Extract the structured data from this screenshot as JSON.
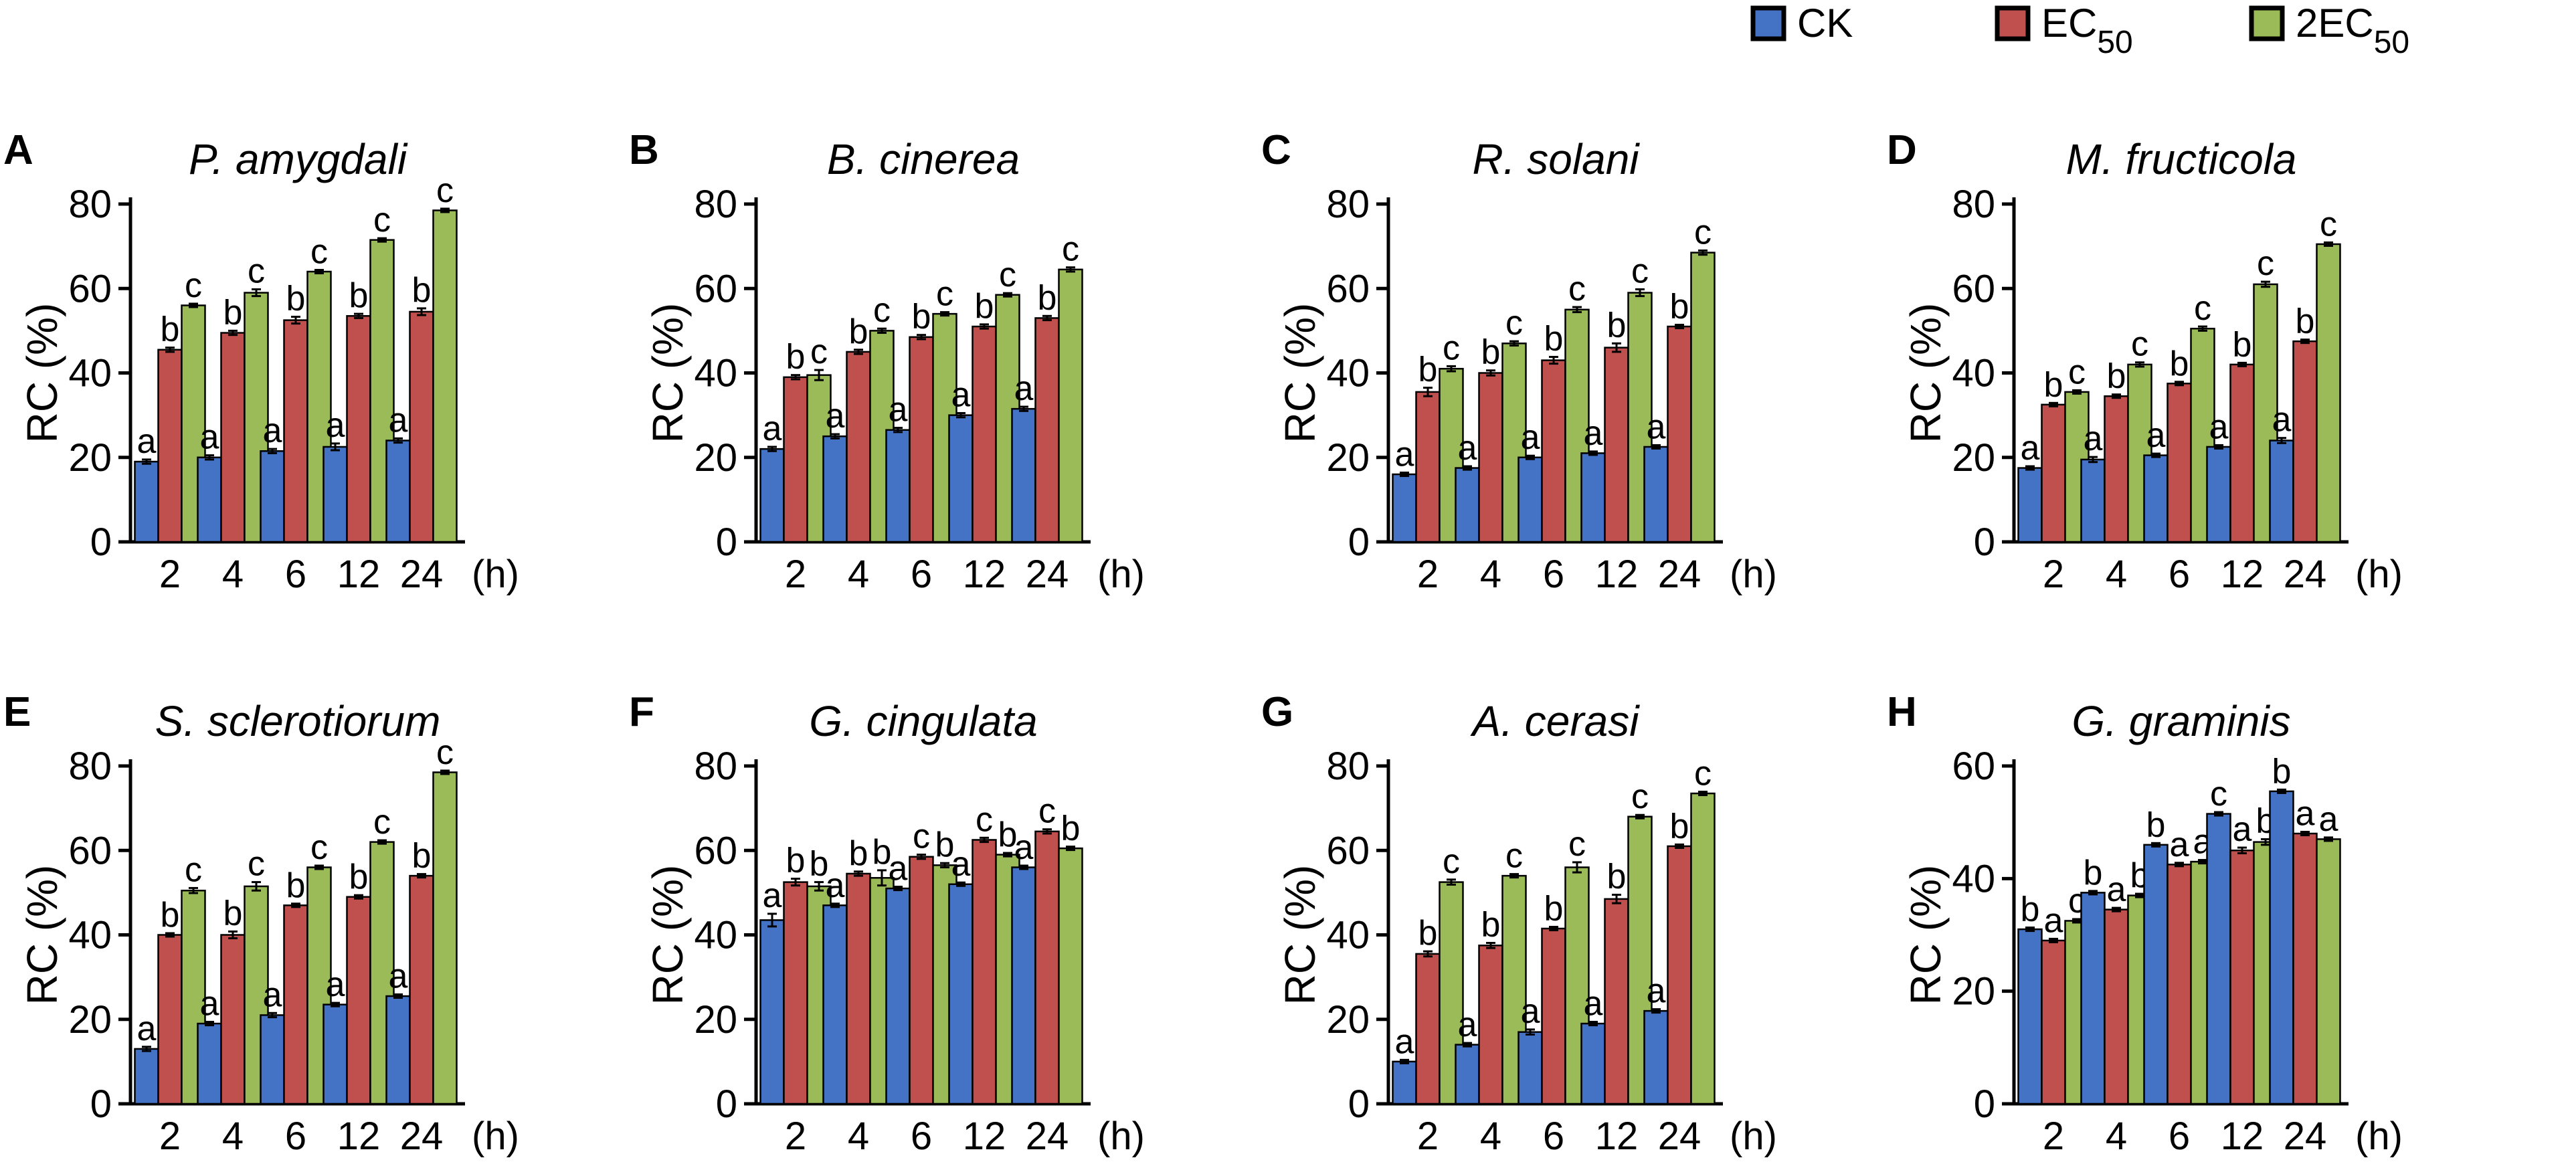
{
  "legend": {
    "items": [
      {
        "name": "CK",
        "label": "CK",
        "sub": "",
        "color": "#4472C4"
      },
      {
        "name": "EC50",
        "label": "EC",
        "sub": "50",
        "color": "#C0504D"
      },
      {
        "name": "2EC50",
        "label": "2EC",
        "sub": "50",
        "color": "#9BBB59"
      }
    ]
  },
  "axis_common": {
    "ylabel": "RC (%)",
    "xunit": "(h)",
    "categories": [
      "2",
      "4",
      "6",
      "12",
      "24"
    ]
  },
  "chart_data": [
    {
      "type": "bar",
      "panel": "A",
      "title": "P. amygdali",
      "categories": [
        "2",
        "4",
        "6",
        "12",
        "24"
      ],
      "xlabel": "(h)",
      "ylabel": "RC (%)",
      "ylim": [
        0,
        80
      ],
      "yticks": [
        0,
        20,
        40,
        60,
        80
      ],
      "series": [
        {
          "name": "CK",
          "values": [
            19,
            20,
            21.5,
            22.5,
            24
          ],
          "errors": [
            0.5,
            0.5,
            0.5,
            0.8,
            0.5
          ],
          "letters": [
            "a",
            "a",
            "a",
            "a",
            "a"
          ]
        },
        {
          "name": "EC50",
          "values": [
            45.5,
            49.5,
            52.5,
            53.5,
            54.5
          ],
          "errors": [
            0.5,
            0.5,
            0.8,
            0.5,
            0.8
          ],
          "letters": [
            "b",
            "b",
            "b",
            "b",
            "b"
          ]
        },
        {
          "name": "2EC50",
          "values": [
            56,
            59,
            64,
            71.5,
            78.5
          ],
          "errors": [
            0.4,
            0.8,
            0.4,
            0.4,
            0.4
          ],
          "letters": [
            "c",
            "c",
            "c",
            "c",
            "c"
          ]
        }
      ]
    },
    {
      "type": "bar",
      "panel": "B",
      "title": "B. cinerea",
      "categories": [
        "2",
        "4",
        "6",
        "12",
        "24"
      ],
      "xlabel": "(h)",
      "ylabel": "RC (%)",
      "ylim": [
        0,
        80
      ],
      "yticks": [
        0,
        20,
        40,
        60,
        80
      ],
      "series": [
        {
          "name": "CK",
          "values": [
            22,
            25,
            26.5,
            30,
            31.5
          ],
          "errors": [
            0.5,
            0.5,
            0.5,
            0.5,
            0.5
          ],
          "letters": [
            "a",
            "a",
            "a",
            "a",
            "a"
          ]
        },
        {
          "name": "EC50",
          "values": [
            39,
            45,
            48.5,
            51,
            53
          ],
          "errors": [
            0.5,
            0.5,
            0.5,
            0.5,
            0.5
          ],
          "letters": [
            "b",
            "b",
            "b",
            "b",
            "b"
          ]
        },
        {
          "name": "2EC50",
          "values": [
            39.5,
            50,
            54,
            58.5,
            64.5
          ],
          "errors": [
            1.2,
            0.5,
            0.4,
            0.4,
            0.5
          ],
          "letters": [
            "c",
            "c",
            "c",
            "c",
            "c"
          ]
        }
      ]
    },
    {
      "type": "bar",
      "panel": "C",
      "title": "R. solani",
      "categories": [
        "2",
        "4",
        "6",
        "12",
        "24"
      ],
      "xlabel": "(h)",
      "ylabel": "RC (%)",
      "ylim": [
        0,
        80
      ],
      "yticks": [
        0,
        20,
        40,
        60,
        80
      ],
      "series": [
        {
          "name": "CK",
          "values": [
            16,
            17.5,
            20,
            21,
            22.5
          ],
          "errors": [
            0.4,
            0.4,
            0.4,
            0.4,
            0.4
          ],
          "letters": [
            "a",
            "a",
            "a",
            "a",
            "a"
          ]
        },
        {
          "name": "EC50",
          "values": [
            35.5,
            40,
            43,
            46,
            51
          ],
          "errors": [
            1.0,
            0.6,
            0.8,
            1.0,
            0.4
          ],
          "letters": [
            "b",
            "b",
            "b",
            "b",
            "b"
          ]
        },
        {
          "name": "2EC50",
          "values": [
            41,
            47,
            55,
            59,
            68.5
          ],
          "errors": [
            0.6,
            0.5,
            0.6,
            0.8,
            0.5
          ],
          "letters": [
            "c",
            "c",
            "c",
            "c",
            "c"
          ]
        }
      ]
    },
    {
      "type": "bar",
      "panel": "D",
      "title": "M. fructicola",
      "categories": [
        "2",
        "4",
        "6",
        "12",
        "24"
      ],
      "xlabel": "(h)",
      "ylabel": "RC (%)",
      "ylim": [
        0,
        80
      ],
      "yticks": [
        0,
        20,
        40,
        60,
        80
      ],
      "series": [
        {
          "name": "CK",
          "values": [
            17.5,
            19.5,
            20.5,
            22.5,
            24
          ],
          "errors": [
            0.4,
            0.6,
            0.4,
            0.4,
            0.6
          ],
          "letters": [
            "a",
            "a",
            "a",
            "a",
            "a"
          ]
        },
        {
          "name": "EC50",
          "values": [
            32.5,
            34.5,
            37.5,
            42,
            47.5
          ],
          "errors": [
            0.4,
            0.4,
            0.4,
            0.4,
            0.4
          ],
          "letters": [
            "b",
            "b",
            "b",
            "b",
            "b"
          ]
        },
        {
          "name": "2EC50",
          "values": [
            35.5,
            42,
            50.5,
            61,
            70.5
          ],
          "errors": [
            0.4,
            0.5,
            0.5,
            0.6,
            0.4
          ],
          "letters": [
            "c",
            "c",
            "c",
            "c",
            "c"
          ]
        }
      ]
    },
    {
      "type": "bar",
      "panel": "E",
      "title": "S. sclerotiorum",
      "categories": [
        "2",
        "4",
        "6",
        "12",
        "24"
      ],
      "xlabel": "(h)",
      "ylabel": "RC (%)",
      "ylim": [
        0,
        80
      ],
      "yticks": [
        0,
        20,
        40,
        60,
        80
      ],
      "series": [
        {
          "name": "CK",
          "values": [
            13,
            19,
            21,
            23.5,
            25.5
          ],
          "errors": [
            0.5,
            0.4,
            0.5,
            0.4,
            0.4
          ],
          "letters": [
            "a",
            "a",
            "a",
            "a",
            "a"
          ]
        },
        {
          "name": "EC50",
          "values": [
            40,
            40,
            47,
            49,
            54
          ],
          "errors": [
            0.4,
            0.8,
            0.4,
            0.4,
            0.4
          ],
          "letters": [
            "b",
            "b",
            "b",
            "b",
            "b"
          ]
        },
        {
          "name": "2EC50",
          "values": [
            50.5,
            51.5,
            56,
            62,
            78.5
          ],
          "errors": [
            0.6,
            1.0,
            0.4,
            0.4,
            0.4
          ],
          "letters": [
            "c",
            "c",
            "c",
            "c",
            "c"
          ]
        }
      ]
    },
    {
      "type": "bar",
      "panel": "F",
      "title": "G. cingulata",
      "categories": [
        "2",
        "4",
        "6",
        "12",
        "24"
      ],
      "xlabel": "(h)",
      "ylabel": "RC (%)",
      "ylim": [
        0,
        80
      ],
      "yticks": [
        0,
        20,
        40,
        60,
        80
      ],
      "series": [
        {
          "name": "CK",
          "values": [
            43.5,
            47,
            51,
            52,
            56
          ],
          "errors": [
            1.5,
            0.4,
            0.4,
            0.4,
            0.4
          ],
          "letters": [
            "a",
            "a",
            "a",
            "a",
            "a"
          ]
        },
        {
          "name": "EC50",
          "values": [
            52.5,
            54.5,
            58.5,
            62.5,
            64.5
          ],
          "errors": [
            0.8,
            0.5,
            0.5,
            0.5,
            0.5
          ],
          "letters": [
            "b",
            "b",
            "c",
            "c",
            "c"
          ]
        },
        {
          "name": "2EC50",
          "values": [
            51.5,
            53.5,
            56.5,
            59,
            60.5
          ],
          "errors": [
            1.0,
            1.8,
            0.5,
            0.4,
            0.4
          ],
          "letters": [
            "b",
            "b",
            "b",
            "b",
            "b"
          ]
        }
      ]
    },
    {
      "type": "bar",
      "panel": "G",
      "title": "A. cerasi",
      "categories": [
        "2",
        "4",
        "6",
        "12",
        "24"
      ],
      "xlabel": "(h)",
      "ylabel": "RC (%)",
      "ylim": [
        0,
        80
      ],
      "yticks": [
        0,
        20,
        40,
        60,
        80
      ],
      "series": [
        {
          "name": "CK",
          "values": [
            10,
            14,
            17,
            19,
            22
          ],
          "errors": [
            0.4,
            0.4,
            0.6,
            0.4,
            0.4
          ],
          "letters": [
            "a",
            "a",
            "a",
            "a",
            "a"
          ]
        },
        {
          "name": "EC50",
          "values": [
            35.5,
            37.5,
            41.5,
            48.5,
            61
          ],
          "errors": [
            0.6,
            0.6,
            0.4,
            1.0,
            0.4
          ],
          "letters": [
            "b",
            "b",
            "b",
            "b",
            "b"
          ]
        },
        {
          "name": "2EC50",
          "values": [
            52.5,
            54,
            56,
            68,
            73.5
          ],
          "errors": [
            0.6,
            0.4,
            1.2,
            0.4,
            0.4
          ],
          "letters": [
            "c",
            "c",
            "c",
            "c",
            "c"
          ]
        }
      ]
    },
    {
      "type": "bar",
      "panel": "H",
      "title": "G. graminis",
      "categories": [
        "2",
        "4",
        "6",
        "12",
        "24"
      ],
      "xlabel": "(h)",
      "ylabel": "RC (%)",
      "ylim": [
        0,
        60
      ],
      "yticks": [
        0,
        20,
        40,
        60
      ],
      "series": [
        {
          "name": "CK",
          "values": [
            31,
            37.5,
            46,
            51.5,
            55.5
          ],
          "errors": [
            0.3,
            0.3,
            0.3,
            0.3,
            0.3
          ],
          "letters": [
            "b",
            "b",
            "b",
            "c",
            "b"
          ]
        },
        {
          "name": "EC50",
          "values": [
            29,
            34.5,
            42.5,
            45,
            48
          ],
          "errors": [
            0.3,
            0.3,
            0.3,
            0.5,
            0.3
          ],
          "letters": [
            "a",
            "a",
            "a",
            "a",
            "a"
          ]
        },
        {
          "name": "2EC50",
          "values": [
            32.5,
            37,
            43,
            46.5,
            47
          ],
          "errors": [
            0.3,
            0.3,
            0.3,
            0.5,
            0.3
          ],
          "letters": [
            "c",
            "b",
            "a",
            "b",
            "a"
          ]
        }
      ]
    }
  ]
}
